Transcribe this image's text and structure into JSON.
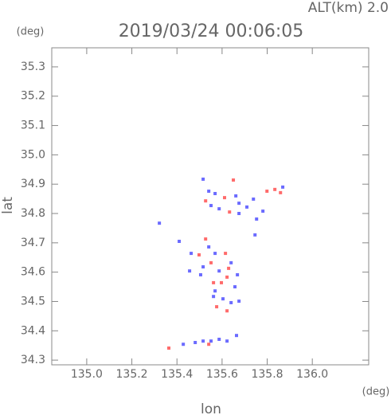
{
  "chart_data": {
    "type": "scatter",
    "title": "2019/03/24 00:06:05",
    "subtitle": "ALT(km) 2.0",
    "x_label": "lon",
    "y_label": "lat",
    "x_unit": "(deg)",
    "y_unit": "(deg)",
    "xlim": [
      134.845,
      136.25
    ],
    "ylim": [
      34.284,
      35.365
    ],
    "xticks": [
      {
        "value": 135,
        "label": "135.0"
      },
      135.2,
      135.4,
      135.6,
      135.8,
      {
        "value": 136,
        "label": "136.0"
      }
    ],
    "yticks": [
      34.3,
      34.4,
      34.5,
      34.6,
      34.7,
      34.8,
      34.9,
      {
        "value": 35,
        "label": "35.0"
      },
      35.1,
      35.2,
      35.3
    ],
    "series": [
      {
        "color": "#6b6bff",
        "x": [
          135.516,
          135.541,
          135.569,
          135.551,
          135.587,
          135.661,
          135.675,
          135.71,
          135.739,
          135.753,
          135.781,
          135.746,
          135.869,
          135.675,
          135.322,
          135.41,
          135.541,
          135.463,
          135.569,
          135.64,
          135.668,
          135.587,
          135.516,
          135.456,
          135.657,
          135.569,
          135.604,
          135.64,
          135.675,
          135.562,
          135.505,
          135.428,
          135.481,
          135.516,
          135.551,
          135.587,
          135.622,
          135.664
        ],
        "values": [
          34.917,
          34.876,
          34.868,
          34.827,
          34.816,
          34.86,
          34.8,
          34.822,
          34.849,
          34.781,
          34.808,
          34.727,
          34.89,
          34.835,
          34.767,
          34.705,
          34.686,
          34.664,
          34.664,
          34.632,
          34.591,
          34.604,
          34.618,
          34.604,
          34.55,
          34.536,
          34.509,
          34.496,
          34.501,
          34.517,
          34.591,
          34.354,
          34.36,
          34.365,
          34.365,
          34.371,
          34.365,
          34.384
        ]
      },
      {
        "color": "#ff6b6b",
        "x": [
          135.527,
          135.611,
          135.65,
          135.633,
          135.799,
          135.834,
          135.859,
          135.527,
          135.498,
          135.615,
          135.551,
          135.562,
          135.622,
          135.576,
          135.622,
          135.597,
          135.629,
          135.364,
          135.541
        ],
        "values": [
          34.843,
          34.854,
          34.914,
          34.805,
          34.876,
          34.882,
          34.871,
          34.713,
          34.659,
          34.664,
          34.632,
          34.564,
          34.583,
          34.482,
          34.468,
          34.564,
          34.613,
          34.341,
          34.354
        ]
      }
    ]
  }
}
